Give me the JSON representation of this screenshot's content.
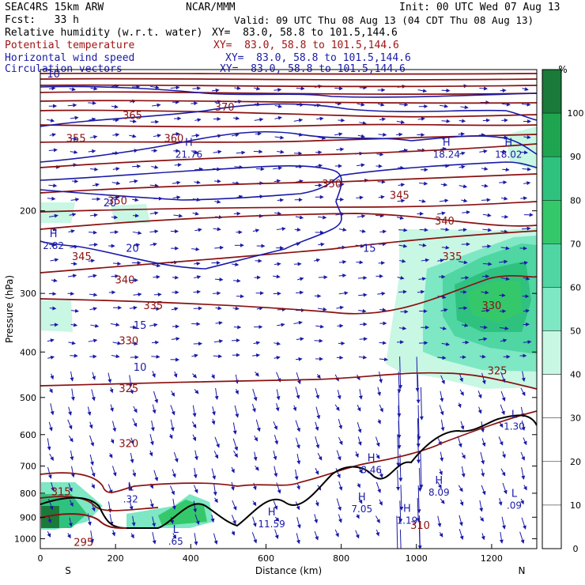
{
  "header": {
    "model": "SEAC4RS 15km ARW",
    "center": "NCAR/MMM",
    "init": "Init: 00 UTC Wed 07 Aug 13",
    "fcst": "Fcst:   33 h",
    "valid": "Valid: 09 UTC Thu 08 Aug 13 (04 CDT Thu 08 Aug 13)",
    "fields": [
      {
        "name": "Relative humidity (w.r.t. water)",
        "xy": "XY=  83.0, 58.8 to 101.5,144.6",
        "color": "#000000"
      },
      {
        "name": "Potential temperature",
        "xy": "XY=  83.0, 58.8 to 101.5,144.6",
        "color": "#a01414"
      },
      {
        "name": "Horizontal wind speed",
        "xy": "XY=  83.0, 58.8 to 101.5,144.6",
        "color": "#1a1aa8"
      },
      {
        "name": "Circulation vectors",
        "xy": "XY=  83.0, 58.8 to 101.5,144.6",
        "color": "#1a1aa8"
      }
    ]
  },
  "axes": {
    "xlabel": "Distance (km)",
    "ylabel": "Pressure (hPa)",
    "xticks": [
      "0",
      "200",
      "400",
      "600",
      "800",
      "1000",
      "1200"
    ],
    "yticks": [
      "200",
      "300",
      "400",
      "500",
      "600",
      "700",
      "800",
      "900",
      "1000"
    ],
    "left_end": "S",
    "right_end": "N"
  },
  "colorbar": {
    "unit": "%",
    "labels": [
      "100",
      "90",
      "80",
      "70",
      "60",
      "50",
      "40",
      "30",
      "20",
      "10",
      "0"
    ]
  },
  "chart_data": {
    "type": "contour",
    "x_range_km": [
      0,
      1320
    ],
    "y_range_hPa": [
      100,
      1050
    ],
    "y_scale": "log-pressure",
    "theta_labels": [
      {
        "v": "370",
        "x": 490,
        "p": 120
      },
      {
        "v": "365",
        "x": 245,
        "p": 125
      },
      {
        "v": "355",
        "x": 95,
        "p": 140
      },
      {
        "v": "360",
        "x": 355,
        "p": 140
      },
      {
        "v": "350",
        "x": 205,
        "p": 190
      },
      {
        "v": "350",
        "x": 775,
        "p": 175
      },
      {
        "v": "345",
        "x": 110,
        "p": 250
      },
      {
        "v": "345",
        "x": 955,
        "p": 185
      },
      {
        "v": "340",
        "x": 225,
        "p": 280
      },
      {
        "v": "340",
        "x": 1075,
        "p": 210
      },
      {
        "v": "335",
        "x": 300,
        "p": 318
      },
      {
        "v": "335",
        "x": 1095,
        "p": 250
      },
      {
        "v": "330",
        "x": 235,
        "p": 378
      },
      {
        "v": "330",
        "x": 1200,
        "p": 318
      },
      {
        "v": "325",
        "x": 235,
        "p": 478
      },
      {
        "v": "325",
        "x": 1215,
        "p": 438
      },
      {
        "v": "320",
        "x": 235,
        "p": 625
      },
      {
        "v": "315",
        "x": 55,
        "p": 792
      },
      {
        "v": "310",
        "x": 1010,
        "p": 935
      },
      {
        "v": "295",
        "x": 115,
        "p": 1015
      }
    ],
    "speed_labels": [
      {
        "v": "10",
        "x": 35,
        "p": 102
      },
      {
        "v": "20",
        "x": 185,
        "p": 192
      },
      {
        "v": "20",
        "x": 245,
        "p": 240
      },
      {
        "v": "15",
        "x": 875,
        "p": 240
      },
      {
        "v": "15",
        "x": 265,
        "p": 350
      },
      {
        "v": "10",
        "x": 265,
        "p": 430
      }
    ],
    "extrema": [
      {
        "t": "H",
        "v": "21.76",
        "x": 395,
        "p": 150
      },
      {
        "t": "H",
        "v": "18.24",
        "x": 1080,
        "p": 150
      },
      {
        "t": "H",
        "v": "18.02",
        "x": 1245,
        "p": 150
      },
      {
        "t": "H",
        "v": "2.82",
        "x": 35,
        "p": 235
      },
      {
        "t": "L",
        "v": "1.30",
        "x": 1260,
        "p": 570
      },
      {
        "t": "H",
        "v": "8.46",
        "x": 880,
        "p": 705
      },
      {
        "t": "H",
        "v": "8.09",
        "x": 1060,
        "p": 788
      },
      {
        "t": "L",
        "v": ".09",
        "x": 1260,
        "p": 840
      },
      {
        "t": "L",
        "v": ".32",
        "x": 240,
        "p": 815
      },
      {
        "t": "H",
        "v": "7.05",
        "x": 855,
        "p": 855
      },
      {
        "t": "H",
        "v": "11.59",
        "x": 615,
        "p": 920
      },
      {
        "t": "H",
        "v": "1.19",
        "x": 975,
        "p": 905
      },
      {
        "t": "L",
        "v": ".65",
        "x": 360,
        "p": 1003
      }
    ]
  }
}
